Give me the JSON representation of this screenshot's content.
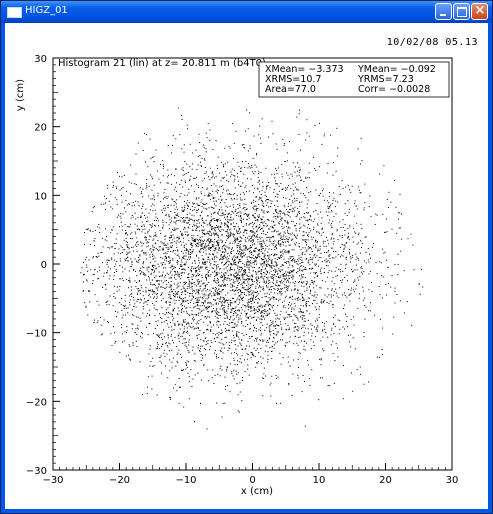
{
  "window": {
    "title": "HIGZ_01",
    "timestamp": "10/02/08  05.13",
    "controls": {
      "minimize": "minimize",
      "maximize": "maximize",
      "close": "×"
    }
  },
  "stats": {
    "xmean": "XMean= −3.373",
    "ymean": "YMean= −0.092",
    "xrms": "XRMS=10.7",
    "yrms": "YRMS=7.23",
    "area": "Area=77.0",
    "corr": "Corr= −0.0028"
  },
  "chart_data": {
    "type": "scatter",
    "title": "Histogram  21 (lin) at z= 20.811 m (b4T0)",
    "xlabel": "x (cm)",
    "ylabel": "y (cm)",
    "xlim": [
      -30,
      30
    ],
    "ylim": [
      -30,
      30
    ],
    "xticks": [
      -30,
      -20,
      -10,
      0,
      10,
      20,
      30
    ],
    "yticks": [
      -30,
      -20,
      -10,
      0,
      10,
      20,
      30
    ],
    "grid": false,
    "distribution": {
      "x_mean": -3.373,
      "y_mean": -0.092,
      "x_rms": 10.7,
      "y_rms": 7.23,
      "correlation": -0.0028,
      "area": 77.0,
      "x_range": [
        -26,
        26
      ],
      "y_range": [
        -24,
        24
      ]
    },
    "point_color": "#000000"
  }
}
